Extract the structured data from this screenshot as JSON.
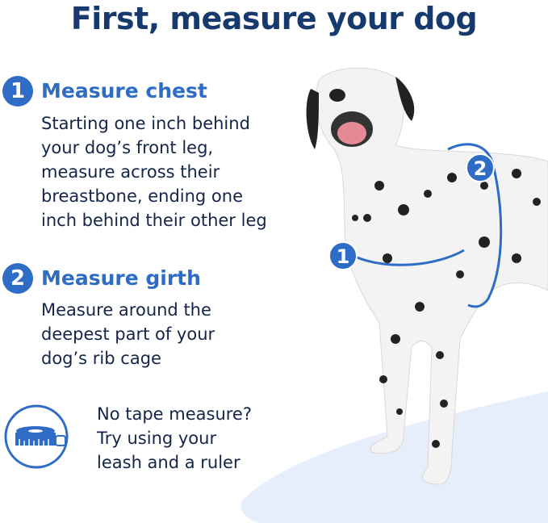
{
  "title": "First, measure your dog",
  "steps": [
    {
      "number": "1",
      "heading": "Measure chest",
      "lines": [
        "Starting one inch behind",
        "your dog’s front leg,",
        "measure across their",
        "breastbone, ending one",
        "inch behind their other leg"
      ]
    },
    {
      "number": "2",
      "heading": "Measure girth",
      "lines": [
        "Measure around the",
        "deepest part of your",
        "dog’s rib cage"
      ]
    }
  ],
  "tip": {
    "icon": "tape-measure-icon",
    "lines": [
      "No tape measure?",
      "Try using your",
      "leash and a ruler"
    ]
  },
  "illustration": {
    "markers": [
      "1",
      "2"
    ]
  },
  "colors": {
    "title": "#173a6e",
    "accent": "#2e6cc6",
    "body_text": "#14254a",
    "floor": "#e6eefb"
  }
}
